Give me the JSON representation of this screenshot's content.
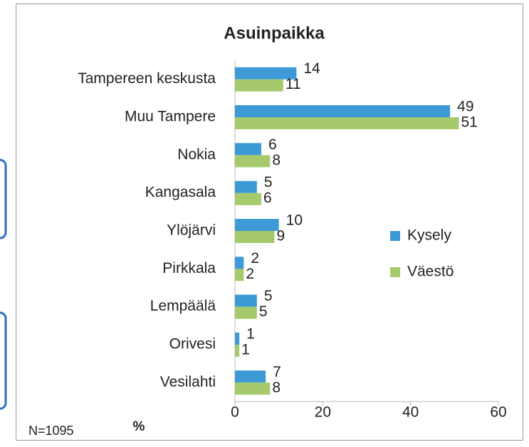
{
  "chart_data": {
    "type": "hbar",
    "title": "Asuinpaikka",
    "categories": [
      "Tampereen keskusta",
      "Muu Tampere",
      "Nokia",
      "Kangasala",
      "Ylöjärvi",
      "Pirkkala",
      "Lempäälä",
      "Orivesi",
      "Vesilahti"
    ],
    "series": [
      {
        "name": "Kysely",
        "color": "#3d9ad6",
        "values": [
          14,
          49,
          6,
          5,
          10,
          2,
          5,
          1,
          7
        ]
      },
      {
        "name": "Väestö",
        "color": "#a5c96b",
        "values": [
          11,
          51,
          8,
          6,
          9,
          2,
          5,
          1,
          8
        ]
      }
    ],
    "xlim": [
      0,
      60
    ],
    "xticks": [
      0,
      20,
      40,
      60
    ],
    "xlabel": "%",
    "note": "N=1095",
    "legend": "right"
  }
}
